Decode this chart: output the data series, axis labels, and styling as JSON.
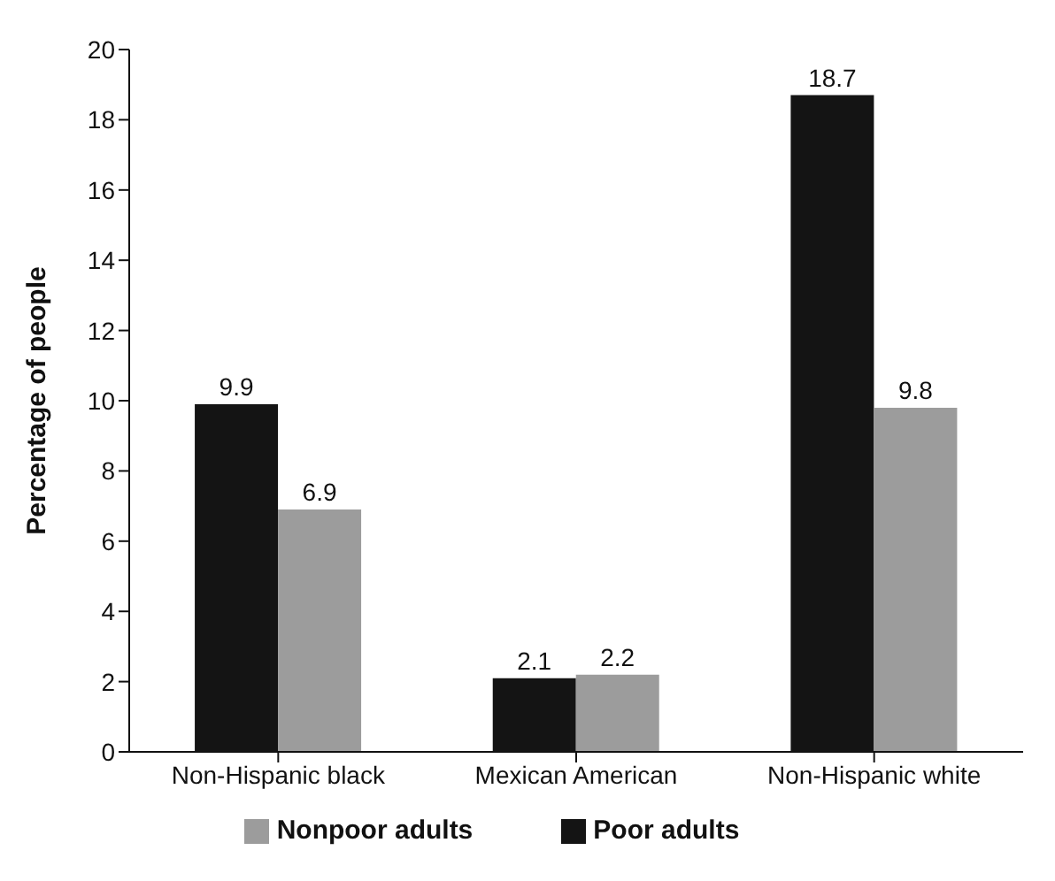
{
  "chart_data": {
    "type": "bar",
    "ylabel": "Percentage of people",
    "categories": [
      "Non-Hispanic black",
      "Mexican American",
      "Non-Hispanic white"
    ],
    "series": [
      {
        "name": "Poor adults",
        "color": "#141414",
        "values": [
          9.9,
          2.1,
          18.7
        ]
      },
      {
        "name": "Nonpoor adults",
        "color": "#9c9c9c",
        "values": [
          6.9,
          2.2,
          9.8
        ]
      }
    ],
    "ylim": [
      0,
      20
    ],
    "yticks": [
      0,
      2,
      4,
      6,
      8,
      10,
      12,
      14,
      16,
      18,
      20
    ],
    "grid": false,
    "legend": "bottom",
    "data_labels": true
  }
}
